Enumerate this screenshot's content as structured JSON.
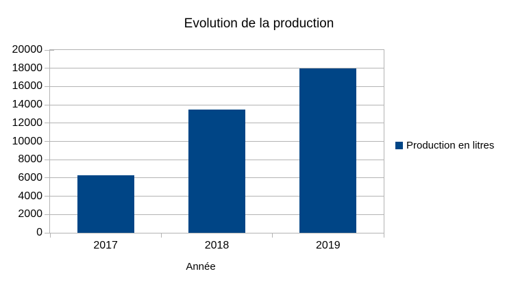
{
  "colors": {
    "bar": "#004586",
    "grid": "#b3b3b3",
    "text": "#000000",
    "background": "#ffffff"
  },
  "legend": {
    "items": [
      {
        "label": "Production en litres",
        "swatch_color": "#004586",
        "swatch_icon": "square-swatch"
      }
    ]
  },
  "chart_data": {
    "type": "bar",
    "title": "Evolution de la production",
    "categories": [
      "2017",
      "2018",
      "2019"
    ],
    "series": [
      {
        "name": "Production en litres",
        "values": [
          6300,
          13450,
          18000
        ]
      }
    ],
    "xlabel": "Année",
    "ylabel": "",
    "ylim": [
      0,
      20000
    ],
    "ytick_interval": 2000,
    "grid": true,
    "legend_position": "right-middle"
  }
}
